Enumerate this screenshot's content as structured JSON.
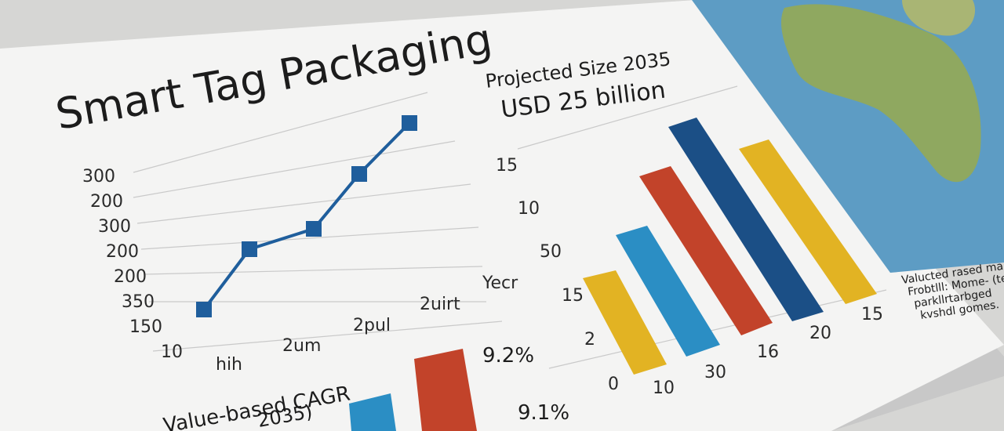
{
  "title": "Smart Tag Packaging",
  "line_panel": {
    "y_labels": [
      "300",
      "200",
      "300",
      "200",
      "200",
      "350",
      "150",
      "10"
    ],
    "x_labels": [
      "hih",
      "2um",
      "2pul",
      "2uirt",
      "Yecr"
    ]
  },
  "bar_panel": {
    "heading": "Projected Size 2035",
    "value": "USD 25 billion",
    "y_labels": [
      "15",
      "10",
      "50",
      "15",
      "2",
      "0"
    ],
    "x_labels": [
      "10",
      "30",
      "16",
      "20",
      "15"
    ]
  },
  "cagr_panel": {
    "label": "Value-based CAGR",
    "sub": "2035)",
    "values": [
      "9.2%",
      "9.1%"
    ]
  },
  "map_note": {
    "lines": [
      "Valucted rased ma",
      "Frobtlll: Mome- (te",
      "parkllrtarbged",
      "kvshdl gomes."
    ]
  }
}
